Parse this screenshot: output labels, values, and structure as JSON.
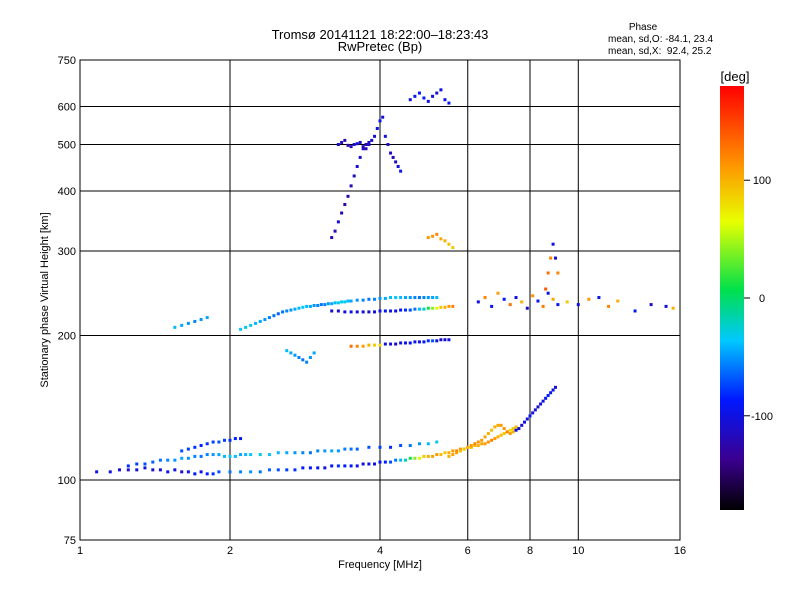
{
  "chart_data": {
    "type": "scatter",
    "title": "Tromsø 20141121 18:22:00–18:23:43",
    "subtitle": "RwPretec (Bp)",
    "xlabel": "Frequency [MHz]",
    "ylabel": "Stationary phase Virtual Height [km]",
    "x_scale": "log",
    "y_scale": "log",
    "xlim": [
      1,
      16
    ],
    "ylim": [
      75,
      750
    ],
    "x_ticks": [
      1,
      2,
      4,
      6,
      8,
      10,
      16
    ],
    "x_tick_labels": [
      "1",
      "2",
      "4",
      "6",
      "8",
      "10",
      "16"
    ],
    "y_ticks": [
      75,
      100,
      200,
      300,
      400,
      500,
      600,
      750
    ],
    "y_tick_labels": [
      "75",
      "100",
      "200",
      "300",
      "400",
      "500",
      "600",
      "750"
    ],
    "grid": true,
    "stats": {
      "heading": "Phase",
      "line_o": "mean, sd,O: -84.1, 23.4",
      "line_x": "mean, sd,X:  92.4, 25.2"
    },
    "colorbar": {
      "label": "[deg]",
      "range": [
        -180,
        180
      ],
      "ticks": [
        100,
        0,
        -100
      ],
      "tick_labels": [
        "100",
        "0",
        "-100"
      ]
    },
    "series": [
      {
        "x": [
          1.08,
          1.15,
          1.2,
          1.25,
          1.3,
          1.35,
          1.4,
          1.45,
          1.5,
          1.55,
          1.6,
          1.65,
          1.7,
          1.75,
          1.8,
          1.85,
          1.9,
          2.0,
          2.1,
          2.2,
          2.3,
          2.4,
          2.5,
          2.6,
          2.7,
          2.8,
          2.9,
          3.0,
          3.1,
          3.2,
          3.3,
          3.4,
          3.5,
          3.6,
          3.7,
          3.8,
          3.9,
          4.0,
          4.1,
          4.2,
          4.3,
          4.4,
          4.5,
          4.6,
          4.7,
          4.8,
          4.9,
          5.0,
          5.1,
          5.2,
          5.3,
          5.4,
          5.5,
          5.6,
          5.7,
          5.8,
          5.9,
          6.0,
          6.1,
          6.2,
          6.3,
          6.4,
          6.5,
          6.6,
          6.7,
          6.8,
          6.9,
          7.0,
          7.1,
          7.2,
          7.3,
          7.4,
          7.5
        ],
        "y": [
          104,
          104,
          105,
          105,
          105,
          106,
          105,
          105,
          104,
          105,
          104,
          104,
          103,
          104,
          103,
          103,
          104,
          104,
          104,
          104,
          104,
          105,
          105,
          105,
          105,
          106,
          106,
          106,
          106,
          107,
          107,
          107,
          107,
          107,
          108,
          108,
          108,
          109,
          109,
          109,
          110,
          110,
          110,
          111,
          111,
          111,
          112,
          112,
          112,
          113,
          113,
          114,
          114,
          115,
          115,
          116,
          116,
          117,
          117,
          118,
          118,
          119,
          119,
          120,
          121,
          122,
          123,
          124,
          125,
          126,
          127,
          128,
          129
        ],
        "phase": [
          -95,
          -100,
          -105,
          -110,
          -105,
          -100,
          -110,
          -105,
          -95,
          -100,
          -105,
          -95,
          -90,
          -95,
          -85,
          -80,
          -70,
          -60,
          -55,
          -50,
          -60,
          -65,
          -70,
          -75,
          -80,
          -85,
          -90,
          -95,
          -100,
          -90,
          -80,
          -85,
          -90,
          -95,
          -100,
          -100,
          -95,
          -90,
          -85,
          -70,
          -60,
          -40,
          -20,
          10,
          40,
          70,
          90,
          100,
          105,
          110,
          95,
          90,
          100,
          110,
          120,
          115,
          110,
          105,
          100,
          95,
          100,
          105,
          110,
          115,
          120,
          110,
          100,
          95,
          90,
          85,
          80,
          90,
          95
        ]
      },
      {
        "x": [
          1.25,
          1.3,
          1.35,
          1.4,
          1.45,
          1.5,
          1.55,
          1.6,
          1.65,
          1.7,
          1.75,
          1.8,
          1.85,
          1.9,
          1.95,
          2.0,
          2.05,
          2.1,
          2.15,
          2.2,
          2.3,
          2.4,
          2.5,
          2.6,
          2.7,
          2.8,
          2.9,
          3.0,
          3.1,
          3.2,
          3.3,
          3.4,
          3.5,
          3.6,
          3.8,
          4.0,
          4.2,
          4.4,
          4.6,
          4.8,
          5.0,
          5.2
        ],
        "y": [
          107,
          108,
          108,
          109,
          110,
          110,
          110,
          111,
          111,
          112,
          112,
          113,
          113,
          113,
          112,
          112,
          112,
          113,
          113,
          113,
          113,
          113,
          114,
          114,
          114,
          114,
          114,
          115,
          115,
          115,
          115,
          116,
          116,
          116,
          117,
          117,
          117,
          118,
          118,
          119,
          119,
          120
        ],
        "phase": [
          -80,
          -75,
          -70,
          -65,
          -60,
          -55,
          -50,
          -45,
          -50,
          -55,
          -60,
          -55,
          -50,
          -45,
          -40,
          -35,
          -40,
          -45,
          -40,
          -35,
          -30,
          -35,
          -40,
          -45,
          -50,
          -55,
          -60,
          -55,
          -50,
          -45,
          -50,
          -55,
          -60,
          -65,
          -70,
          -75,
          -80,
          -70,
          -60,
          -50,
          -40,
          -30
        ]
      },
      {
        "x": [
          1.6,
          1.65,
          1.7,
          1.75,
          1.8,
          1.85,
          1.9,
          1.95,
          2.0,
          2.05,
          2.1
        ],
        "y": [
          115,
          116,
          117,
          118,
          119,
          120,
          120,
          121,
          121,
          122,
          122
        ],
        "phase": [
          -70,
          -75,
          -80,
          -85,
          -80,
          -75,
          -70,
          -75,
          -80,
          -85,
          -90
        ]
      },
      {
        "x": [
          1.55,
          1.6,
          1.65,
          1.7,
          1.75,
          1.8,
          2.1,
          2.15,
          2.2,
          2.25,
          2.3,
          2.35,
          2.4,
          2.45,
          2.5,
          2.55,
          2.6,
          2.65,
          2.7,
          2.75,
          2.8,
          2.85,
          2.9,
          2.95,
          3.0,
          3.05,
          3.1,
          3.15,
          3.2,
          3.25,
          3.3,
          3.35,
          3.4,
          3.45,
          3.5,
          3.6,
          3.7,
          3.8,
          3.9,
          4.0,
          4.1,
          4.2,
          4.3,
          4.4,
          4.5,
          4.6,
          4.7,
          4.8,
          4.9,
          5.0,
          5.1,
          5.2
        ],
        "y": [
          208,
          210,
          212,
          214,
          216,
          218,
          206,
          208,
          210,
          212,
          214,
          216,
          218,
          220,
          222,
          224,
          225,
          226,
          227,
          228,
          229,
          230,
          230,
          231,
          231,
          232,
          232,
          233,
          233,
          234,
          234,
          235,
          235,
          236,
          236,
          237,
          237,
          238,
          238,
          239,
          239,
          240,
          240,
          240,
          240,
          240,
          240,
          240,
          240,
          240,
          240,
          240
        ],
        "phase": [
          -40,
          -45,
          -50,
          -55,
          -50,
          -45,
          -35,
          -30,
          -35,
          -40,
          -45,
          -50,
          -55,
          -60,
          -65,
          -60,
          -55,
          -50,
          -45,
          -40,
          -35,
          -40,
          -45,
          -50,
          -55,
          -60,
          -55,
          -50,
          -45,
          -40,
          -35,
          -30,
          -35,
          -40,
          -45,
          -50,
          -55,
          -60,
          -55,
          -50,
          -45,
          -40,
          -35,
          -40,
          -45,
          -50,
          -55,
          -60,
          -55,
          -50,
          -45,
          -40
        ]
      },
      {
        "x": [
          3.2,
          3.3,
          3.4,
          3.5,
          3.6,
          3.7,
          3.8,
          3.9,
          4.0,
          4.1,
          4.2,
          4.3,
          4.4,
          4.5,
          4.6,
          4.7,
          4.8,
          4.9,
          5.0,
          5.1,
          5.2,
          5.3,
          5.4,
          5.5,
          5.6
        ],
        "y": [
          225,
          225,
          224,
          224,
          224,
          224,
          224,
          224,
          225,
          225,
          225,
          225,
          226,
          226,
          226,
          227,
          227,
          227,
          228,
          228,
          228,
          229,
          229,
          230,
          230
        ],
        "phase": [
          -105,
          -110,
          -100,
          -95,
          -100,
          -105,
          -110,
          -100,
          -95,
          -90,
          -95,
          -100,
          -90,
          -80,
          -70,
          -60,
          -40,
          -20,
          10,
          40,
          70,
          90,
          100,
          110,
          120
        ]
      },
      {
        "x": [
          2.6,
          2.65,
          2.7,
          2.75,
          2.8,
          2.85,
          2.9,
          2.95
        ],
        "y": [
          186,
          184,
          182,
          180,
          178,
          176,
          180,
          184
        ],
        "phase": [
          -40,
          -45,
          -50,
          -55,
          -60,
          -55,
          -50,
          -45
        ]
      },
      {
        "x": [
          3.5,
          3.6,
          3.7,
          3.8,
          3.9,
          4.0,
          4.1,
          4.2,
          4.3,
          4.4,
          4.5,
          4.6,
          4.7,
          4.8,
          4.9,
          5.0,
          5.1,
          5.2,
          5.3,
          5.4,
          5.5
        ],
        "y": [
          190,
          190,
          190,
          191,
          191,
          191,
          192,
          192,
          192,
          193,
          193,
          193,
          194,
          194,
          194,
          195,
          195,
          195,
          196,
          196,
          196
        ],
        "phase": [
          130,
          120,
          110,
          100,
          90,
          80,
          -100,
          -105,
          -110,
          -100,
          -95,
          -90,
          -95,
          -100,
          -90,
          -80,
          -70,
          -100,
          -105,
          -110,
          -100
        ]
      },
      {
        "x": [
          3.2,
          3.25,
          3.3,
          3.35,
          3.4,
          3.45,
          3.5,
          3.55,
          3.6,
          3.65,
          3.7,
          3.75,
          3.8,
          3.85,
          3.9,
          3.95,
          4.0,
          4.05,
          4.1,
          4.15,
          4.2,
          4.25,
          4.3,
          4.35,
          4.4
        ],
        "y": [
          320,
          330,
          345,
          360,
          375,
          390,
          410,
          430,
          450,
          470,
          490,
          500,
          505,
          510,
          520,
          540,
          560,
          570,
          520,
          500,
          480,
          470,
          460,
          450,
          440
        ],
        "phase": [
          -120,
          -115,
          -110,
          -125,
          -130,
          -120,
          -115,
          -110,
          -105,
          -110,
          -120,
          -125,
          -115,
          -110,
          -105,
          -100,
          -95,
          -100,
          -105,
          -110,
          -115,
          -120,
          -110,
          -100,
          -95
        ]
      },
      {
        "x": [
          3.3,
          3.35,
          3.4,
          3.45,
          3.5,
          3.55,
          3.6,
          3.65,
          3.7,
          3.75,
          3.8
        ],
        "y": [
          500,
          505,
          510,
          498,
          495,
          500,
          502,
          505,
          495,
          490,
          500
        ],
        "phase": [
          -110,
          -115,
          -120,
          -125,
          -115,
          -110,
          -105,
          -110,
          -115,
          -120,
          -110
        ]
      },
      {
        "x": [
          4.6,
          4.7,
          4.8,
          4.9,
          5.0,
          5.1,
          5.2,
          5.3,
          5.4,
          5.5
        ],
        "y": [
          620,
          630,
          640,
          625,
          615,
          630,
          640,
          650,
          620,
          610
        ],
        "phase": [
          -100,
          -95,
          -90,
          -85,
          -100,
          -105,
          -110,
          -100,
          -95,
          -90
        ]
      },
      {
        "x": [
          5.0,
          5.1,
          5.2,
          5.3,
          5.4,
          5.5,
          5.6
        ],
        "y": [
          320,
          322,
          325,
          318,
          315,
          310,
          305
        ],
        "phase": [
          110,
          115,
          120,
          105,
          100,
          95,
          90
        ]
      },
      {
        "x": [
          5.5,
          5.6,
          5.7,
          5.8,
          5.9,
          6.0,
          6.1,
          6.2,
          6.3,
          6.4,
          6.5,
          6.6,
          6.7,
          6.8,
          6.9,
          7.0,
          7.1,
          7.2,
          7.3,
          7.4,
          7.5,
          7.6,
          7.7,
          7.8,
          7.9,
          8.0,
          8.1,
          8.2,
          8.3,
          8.4,
          8.5,
          8.6,
          8.7,
          8.8,
          8.9,
          9.0
        ],
        "y": [
          112,
          113,
          114,
          115,
          116,
          117,
          118,
          119,
          120,
          121,
          123,
          125,
          127,
          129,
          130,
          130,
          128,
          126,
          125,
          126,
          127,
          128,
          130,
          132,
          134,
          136,
          138,
          140,
          142,
          144,
          146,
          148,
          150,
          152,
          154,
          156
        ],
        "phase": [
          100,
          105,
          110,
          95,
          90,
          100,
          110,
          120,
          115,
          110,
          105,
          100,
          95,
          100,
          105,
          110,
          115,
          120,
          110,
          100,
          -100,
          -105,
          -110,
          -100,
          -95,
          -90,
          -100,
          -105,
          -110,
          -100,
          -95,
          -90,
          -85,
          -95,
          -100,
          -105
        ]
      },
      {
        "x": [
          6.3,
          6.5,
          6.7,
          6.9,
          7.1,
          7.3,
          7.5,
          7.7,
          7.9,
          8.1,
          8.3,
          8.5,
          8.7,
          8.9,
          9.1
        ],
        "y": [
          235,
          240,
          230,
          245,
          238,
          232,
          240,
          235,
          228,
          242,
          236,
          230,
          245,
          238,
          232
        ],
        "phase": [
          -100,
          120,
          -95,
          110,
          -90,
          130,
          -100,
          100,
          -110,
          115,
          -95,
          125,
          -100,
          105,
          -90
        ]
      },
      {
        "x": [
          9.5,
          10.0,
          10.5,
          11.0,
          11.5,
          12.0,
          13.0,
          14.0,
          15.0,
          15.5
        ],
        "y": [
          235,
          232,
          238,
          240,
          230,
          236,
          225,
          232,
          230,
          228
        ],
        "phase": [
          90,
          -100,
          110,
          -95,
          120,
          100,
          -90,
          -110,
          -105,
          100
        ]
      },
      {
        "x": [
          8.6,
          8.7,
          8.8,
          8.9,
          9.0,
          9.1
        ],
        "y": [
          250,
          270,
          290,
          310,
          290,
          270
        ],
        "phase": [
          140,
          130,
          120,
          -100,
          -110,
          120
        ]
      }
    ]
  }
}
